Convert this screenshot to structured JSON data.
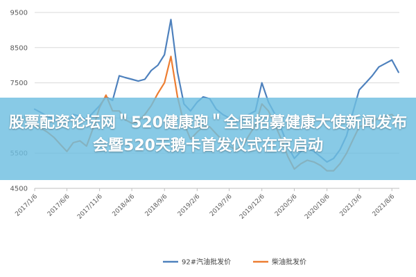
{
  "headline": "股票配资论坛网＂520健康跑＂全国招募健康大使新闻发布会暨520天鹅卡首发仪式在京启动",
  "chart_data": {
    "type": "line",
    "title": "",
    "xlabel": "",
    "ylabel": "",
    "ylim": [
      4500,
      9500
    ],
    "yticks": [
      4500,
      5500,
      6500,
      7500,
      8500,
      9500
    ],
    "x_start": "2017-01-06",
    "x_end": "2021-09-10",
    "xticks": [
      "2017/1/6",
      "2017/6/6",
      "2017/11/6",
      "2018/4/6",
      "2018/9/6",
      "2019/2/6",
      "2019/7/6",
      "2019/12/6",
      "2020/5/6",
      "2020/10/6",
      "2021/3/6",
      "2021/8/6"
    ],
    "legend_position": "bottom",
    "grid": "horizontal",
    "series": [
      {
        "name": "92#汽油批发价",
        "color": "#4e81bd",
        "x": [
          "2017-01-06",
          "2017-02-06",
          "2017-03-06",
          "2017-04-06",
          "2017-05-06",
          "2017-06-06",
          "2017-07-06",
          "2017-08-06",
          "2017-09-06",
          "2017-10-06",
          "2017-11-06",
          "2017-12-06",
          "2018-01-06",
          "2018-02-06",
          "2018-03-06",
          "2018-04-06",
          "2018-05-06",
          "2018-06-06",
          "2018-07-06",
          "2018-08-06",
          "2018-09-06",
          "2018-10-06",
          "2018-11-06",
          "2018-12-06",
          "2019-01-06",
          "2019-02-06",
          "2019-03-06",
          "2019-04-06",
          "2019-05-06",
          "2019-06-06",
          "2019-07-06",
          "2019-08-06",
          "2019-09-06",
          "2019-10-06",
          "2019-11-06",
          "2019-12-06",
          "2020-01-06",
          "2020-02-06",
          "2020-03-06",
          "2020-04-06",
          "2020-05-06",
          "2020-06-06",
          "2020-07-06",
          "2020-08-06",
          "2020-09-06",
          "2020-10-06",
          "2020-11-06",
          "2020-12-06",
          "2021-01-06",
          "2021-02-06",
          "2021-03-06",
          "2021-04-06",
          "2021-05-06",
          "2021-06-06",
          "2021-07-06",
          "2021-08-06",
          "2021-09-06"
        ],
        "values": [
          6750,
          6650,
          6550,
          6450,
          6400,
          6350,
          6600,
          6550,
          6450,
          6650,
          6850,
          7100,
          7000,
          7700,
          7650,
          7600,
          7550,
          7600,
          7850,
          8000,
          8300,
          9300,
          7800,
          6900,
          6700,
          6950,
          7100,
          7050,
          6750,
          6600,
          6500,
          6400,
          6450,
          6600,
          6700,
          7500,
          6950,
          6600,
          6200,
          5700,
          5350,
          5550,
          5650,
          5550,
          5400,
          5250,
          5350,
          5600,
          6000,
          6700,
          7300,
          7500,
          7700,
          7950,
          8050,
          8150,
          7800
        ]
      },
      {
        "name": "柴油批发价",
        "color": "#ed7d31",
        "x": [
          "2017-01-06",
          "2017-02-06",
          "2017-03-06",
          "2017-04-06",
          "2017-05-06",
          "2017-06-06",
          "2017-07-06",
          "2017-08-06",
          "2017-09-06",
          "2017-10-06",
          "2017-11-06",
          "2017-12-06",
          "2018-01-06",
          "2018-02-06",
          "2018-03-06",
          "2018-04-06",
          "2018-05-06",
          "2018-06-06",
          "2018-07-06",
          "2018-08-06",
          "2018-09-06",
          "2018-10-06",
          "2018-11-06",
          "2018-12-06",
          "2019-01-06",
          "2019-02-06",
          "2019-03-06",
          "2019-04-06",
          "2019-05-06",
          "2019-06-06",
          "2019-07-06",
          "2019-08-06",
          "2019-09-06",
          "2019-10-06",
          "2019-11-06",
          "2019-12-06",
          "2020-01-06",
          "2020-02-06",
          "2020-03-06",
          "2020-04-06",
          "2020-05-06",
          "2020-06-06",
          "2020-07-06",
          "2020-08-06",
          "2020-09-06",
          "2020-10-06",
          "2020-11-06",
          "2020-12-06",
          "2021-01-06",
          "2021-02-06",
          "2021-03-06",
          "2021-04-06",
          "2021-05-06",
          "2021-06-06",
          "2021-07-06",
          "2021-08-06",
          "2021-09-06"
        ],
        "values": [
          6300,
          6200,
          6100,
          5950,
          5750,
          5550,
          5800,
          5850,
          5700,
          6200,
          6800,
          7150,
          6700,
          6700,
          6450,
          6350,
          6400,
          6600,
          6850,
          7200,
          7500,
          8250,
          7100,
          6350,
          5900,
          6100,
          6250,
          6250,
          6050,
          5850,
          5700,
          5600,
          5700,
          6000,
          6300,
          6900,
          6700,
          6300,
          5900,
          5400,
          5050,
          5200,
          5300,
          5250,
          5150,
          5000,
          5000,
          5200,
          5500,
          5900,
          6250,
          6300,
          6400,
          6500,
          6550,
          6600,
          6400
        ]
      }
    ]
  }
}
